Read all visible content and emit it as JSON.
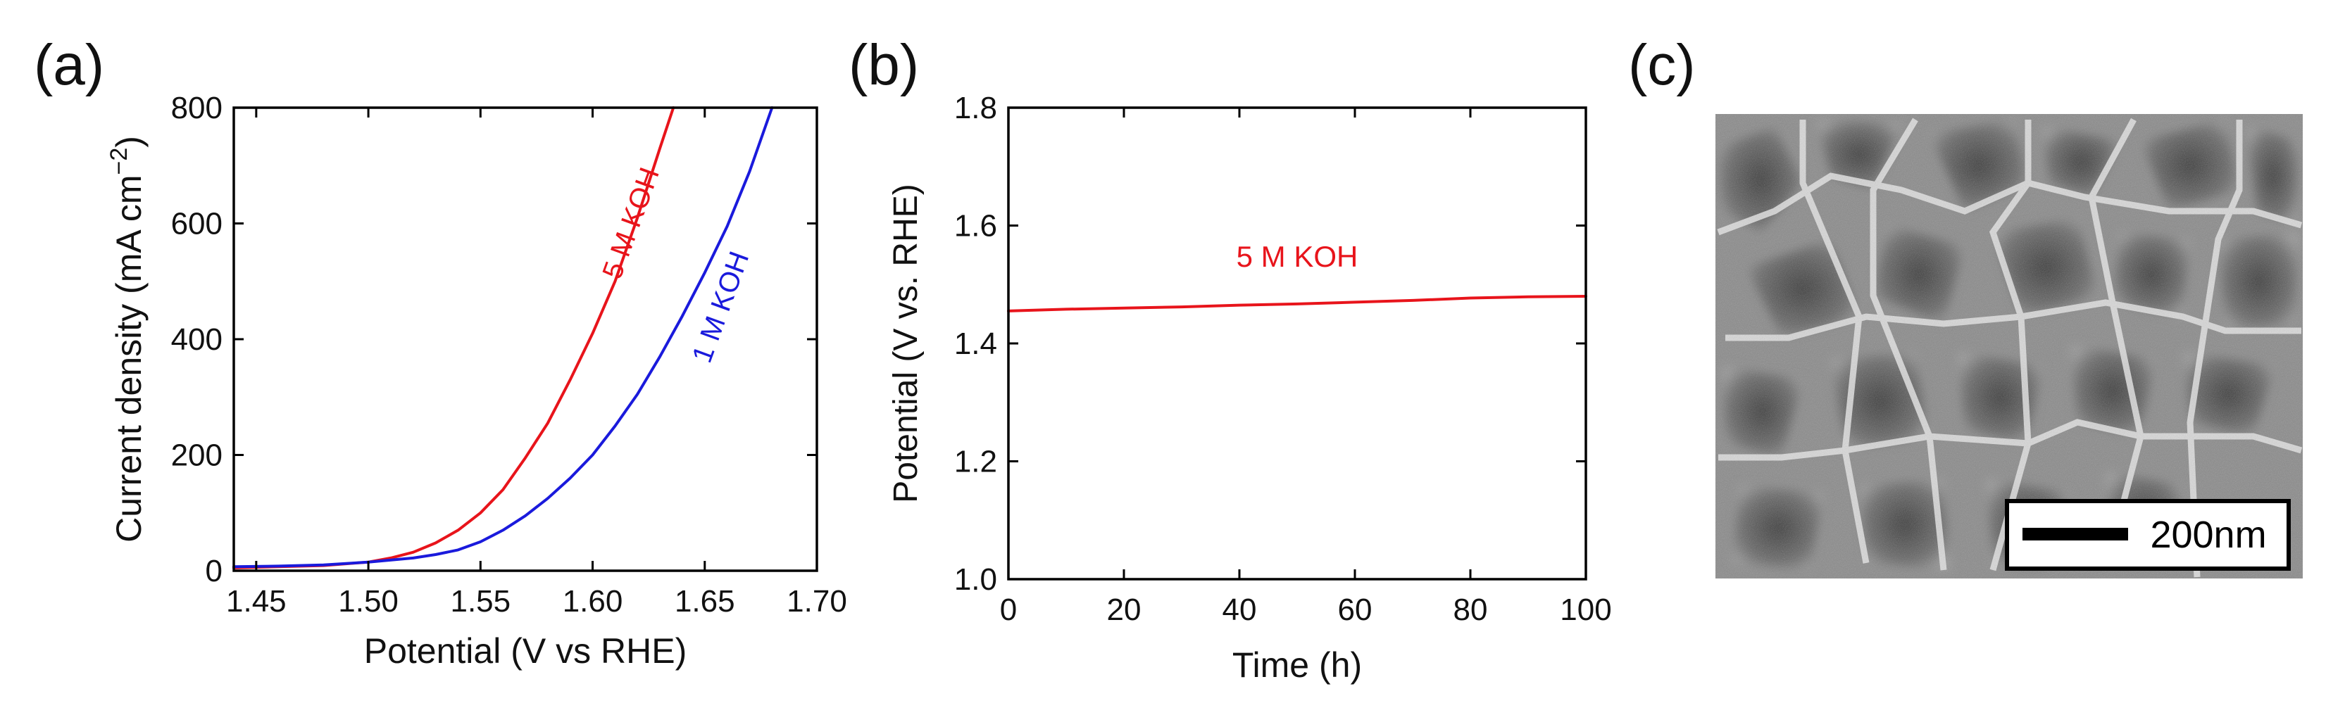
{
  "panels": {
    "a": {
      "label": "(a)"
    },
    "b": {
      "label": "(b)"
    },
    "c": {
      "label": "(c)",
      "scale_bar": "200nm",
      "image_description": "SEM micrograph of interconnected nanosheet network"
    }
  },
  "chart_data": [
    {
      "id": "a",
      "type": "line",
      "xlabel": "Potential (V vs RHE)",
      "ylabel": "Current density (mA cm",
      "ylabel_sup": "−2",
      "ylabel_end": ")",
      "xlim": [
        1.44,
        1.7
      ],
      "ylim": [
        0,
        800
      ],
      "xticks": [
        1.45,
        1.5,
        1.55,
        1.6,
        1.65,
        1.7
      ],
      "xtick_labels": [
        "1.45",
        "1.50",
        "1.55",
        "1.60",
        "1.65",
        "1.70"
      ],
      "yticks": [
        0,
        200,
        400,
        600,
        800
      ],
      "ytick_labels": [
        "0",
        "200",
        "400",
        "600",
        "800"
      ],
      "series": [
        {
          "name": "5 M KOH",
          "color": "#e8141b",
          "label_at": [
            1.621,
            595
          ],
          "x": [
            1.44,
            1.46,
            1.48,
            1.5,
            1.51,
            1.52,
            1.53,
            1.54,
            1.55,
            1.56,
            1.57,
            1.58,
            1.59,
            1.6,
            1.61,
            1.62,
            1.63,
            1.636
          ],
          "y": [
            5,
            7,
            9,
            15,
            22,
            32,
            48,
            70,
            100,
            140,
            195,
            255,
            330,
            410,
            500,
            610,
            730,
            800
          ]
        },
        {
          "name": "1 M KOH",
          "color": "#1a1adc",
          "label_at": [
            1.661,
            450
          ],
          "x": [
            1.44,
            1.46,
            1.48,
            1.5,
            1.52,
            1.53,
            1.54,
            1.55,
            1.56,
            1.57,
            1.58,
            1.59,
            1.6,
            1.61,
            1.62,
            1.63,
            1.64,
            1.65,
            1.66,
            1.67,
            1.68
          ],
          "y": [
            7,
            8,
            10,
            15,
            22,
            28,
            36,
            50,
            70,
            95,
            125,
            160,
            200,
            250,
            305,
            370,
            440,
            515,
            595,
            690,
            800
          ]
        }
      ]
    },
    {
      "id": "b",
      "type": "line",
      "xlabel": "Time (h)",
      "ylabel": "Potential (V vs. RHE)",
      "xlim": [
        0,
        100
      ],
      "ylim": [
        1.0,
        1.8
      ],
      "xticks": [
        0,
        20,
        40,
        60,
        80,
        100
      ],
      "xtick_labels": [
        "0",
        "20",
        "40",
        "60",
        "80",
        "100"
      ],
      "yticks": [
        1.0,
        1.2,
        1.4,
        1.6,
        1.8
      ],
      "ytick_labels": [
        "1.0",
        "1.2",
        "1.4",
        "1.6",
        "1.8"
      ],
      "series": [
        {
          "name": "5 M KOH",
          "color": "#e8141b",
          "label_at": [
            50,
            1.53
          ],
          "x": [
            0,
            10,
            20,
            30,
            40,
            50,
            60,
            70,
            80,
            90,
            100
          ],
          "y": [
            1.455,
            1.458,
            1.46,
            1.462,
            1.465,
            1.467,
            1.47,
            1.473,
            1.477,
            1.479,
            1.48
          ]
        }
      ]
    }
  ]
}
